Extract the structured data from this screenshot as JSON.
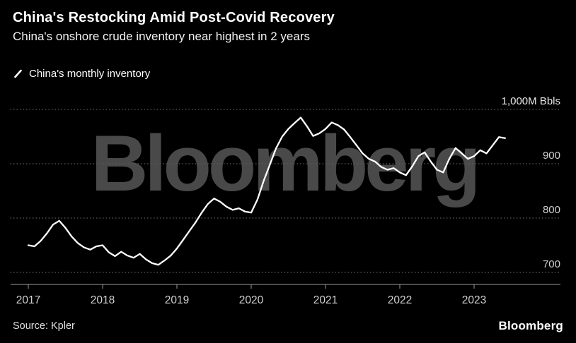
{
  "header": {
    "title": "China's Restocking Amid Post-Covid Recovery",
    "subtitle": "China's onshore crude inventory near highest in 2 years"
  },
  "legend": {
    "label": "China's monthly inventory",
    "marker_color": "#ffffff"
  },
  "watermark": "Bloomberg",
  "footer": {
    "source": "Source: Kpler",
    "logo": "Bloomberg"
  },
  "colors": {
    "background": "#000000",
    "line": "#ffffff",
    "gridline": "#5f5f5f",
    "axis": "#9a9a9a",
    "tick_label": "#d0d0d0",
    "watermark": "#4d4d4d"
  },
  "chart_data": {
    "type": "line",
    "title": "China's Restocking Amid Post-Covid Recovery",
    "subtitle": "China's onshore crude inventory near highest in 2 years",
    "unit_label": "M Bbls",
    "frequency": "monthly",
    "x_start": "2017-01",
    "x_end": "2023-06",
    "x_tick_labels": [
      "2017",
      "2018",
      "2019",
      "2020",
      "2021",
      "2022",
      "2023"
    ],
    "yticks": [
      700,
      800,
      900,
      1000
    ],
    "ytick_labels": [
      "700",
      "800",
      "900",
      "1,000M Bbls"
    ],
    "ylim": [
      700,
      1010
    ],
    "grid": "dotted-horizontal",
    "legend_position": "top-left",
    "series": [
      {
        "name": "China's monthly inventory",
        "color": "#ffffff",
        "values": [
          750,
          748,
          758,
          772,
          788,
          795,
          782,
          766,
          754,
          746,
          742,
          748,
          750,
          737,
          730,
          738,
          731,
          727,
          734,
          724,
          717,
          714,
          722,
          731,
          744,
          760,
          776,
          792,
          810,
          826,
          836,
          830,
          821,
          815,
          818,
          812,
          810,
          834,
          868,
          898,
          928,
          950,
          964,
          975,
          985,
          969,
          951,
          956,
          964,
          976,
          971,
          963,
          949,
          934,
          919,
          909,
          904,
          894,
          889,
          892,
          884,
          879,
          895,
          914,
          921,
          904,
          889,
          884,
          909,
          929,
          919,
          909,
          914,
          925,
          919,
          934,
          949,
          947
        ]
      }
    ]
  }
}
